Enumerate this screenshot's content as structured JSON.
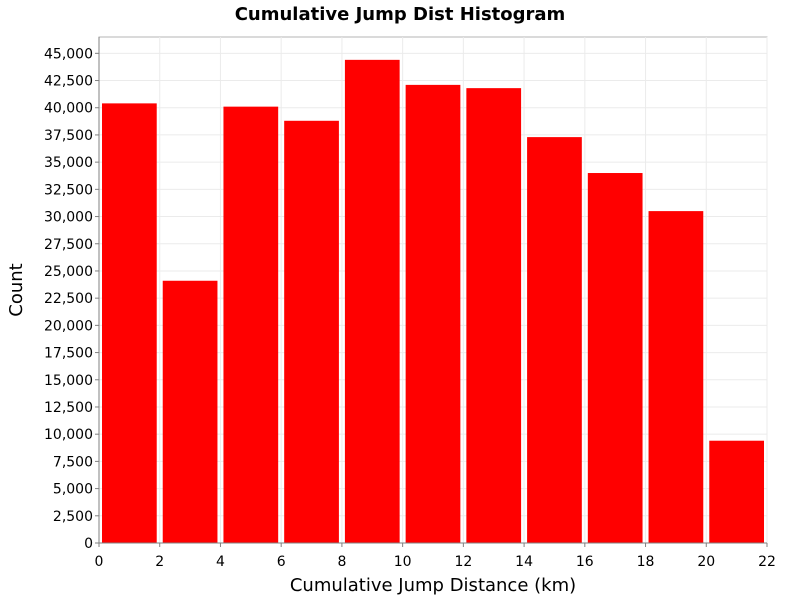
{
  "chart_data": {
    "type": "bar",
    "title": "Cumulative Jump Dist Histogram",
    "xlabel": "Cumulative Jump Distance (km)",
    "ylabel": "Count",
    "bin_edges": [
      0,
      2,
      4,
      6,
      8,
      10,
      12,
      14,
      16,
      18,
      20,
      22
    ],
    "values": [
      40400,
      24100,
      40100,
      38800,
      44400,
      42100,
      41800,
      37300,
      34000,
      30500,
      9400
    ],
    "xlim": [
      0,
      22
    ],
    "ylim": [
      0,
      46500
    ],
    "xticks": [
      "0",
      "2",
      "4",
      "6",
      "8",
      "10",
      "12",
      "14",
      "16",
      "18",
      "20",
      "22"
    ],
    "yticks": [
      "0",
      "2,500",
      "5,000",
      "7,500",
      "10,000",
      "12,500",
      "15,000",
      "17,500",
      "20,000",
      "22,500",
      "25,000",
      "27,500",
      "30,000",
      "32,500",
      "35,000",
      "37,500",
      "40,000",
      "42,500",
      "45,000"
    ],
    "ytick_values": [
      0,
      2500,
      5000,
      7500,
      10000,
      12500,
      15000,
      17500,
      20000,
      22500,
      25000,
      27500,
      30000,
      32500,
      35000,
      37500,
      40000,
      42500,
      45000
    ],
    "grid": true,
    "bar_color": "#ff0000",
    "legend": "none"
  }
}
